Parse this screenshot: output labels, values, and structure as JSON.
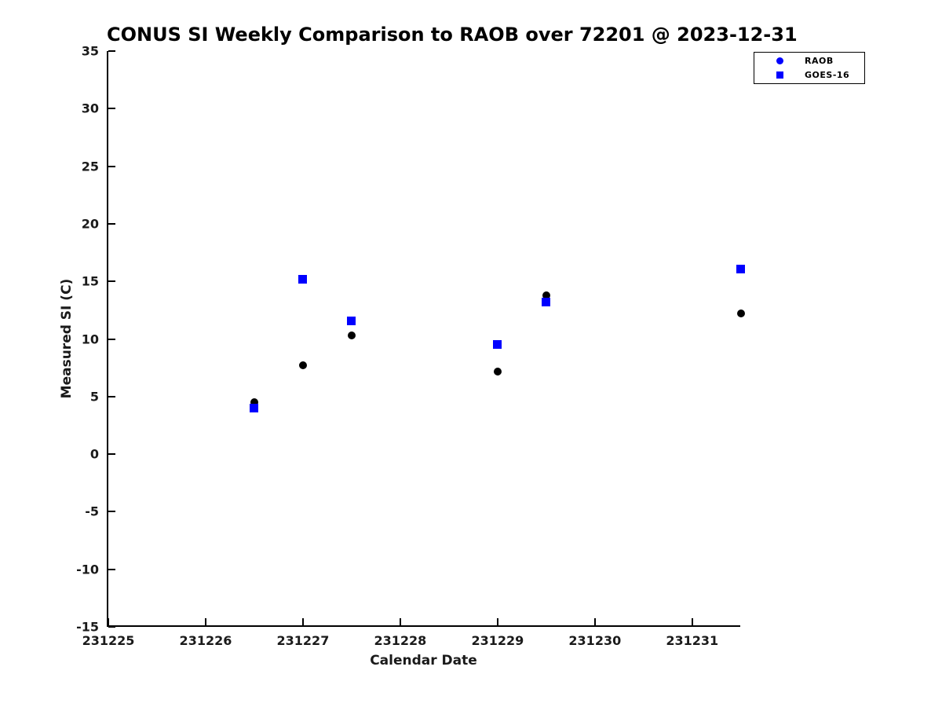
{
  "title": "CONUS SI Weekly Comparison to RAOB over 72201 @ 2023-12-31",
  "axes": {
    "xlabel": "Calendar Date",
    "ylabel": "Measured SI (C)"
  },
  "legend": {
    "position": "top-right",
    "items": [
      {
        "label": "RAOB",
        "marker": "circle",
        "color": "#0000FF"
      },
      {
        "label": "GOES-16",
        "marker": "square",
        "color": "#0000FF"
      }
    ]
  },
  "colors": {
    "raob_marker": "#000000",
    "goes_marker": "#0000FF",
    "axis": "#000000",
    "background": "#ffffff"
  },
  "chart_data": {
    "type": "scatter",
    "title": "CONUS SI Weekly Comparison to RAOB over 72201 @ 2023-12-31",
    "xlabel": "Calendar Date",
    "ylabel": "Measured SI (C)",
    "xlim": [
      231225,
      231231.51
    ],
    "ylim": [
      -15,
      35
    ],
    "x_ticks": [
      231225,
      231226,
      231227,
      231228,
      231229,
      231230,
      231231
    ],
    "y_ticks": [
      35,
      30,
      25,
      20,
      15,
      10,
      5,
      0,
      -5,
      -10,
      -15
    ],
    "grid": false,
    "legend_position": "top-right",
    "series": [
      {
        "name": "RAOB",
        "marker": "circle",
        "marker_color": "#000000",
        "marker_size": 10,
        "points": [
          [
            231226.5,
            4.5
          ],
          [
            231227.0,
            7.7
          ],
          [
            231227.5,
            10.3
          ],
          [
            231229.0,
            7.2
          ],
          [
            231229.5,
            13.8
          ],
          [
            231231.5,
            12.2
          ]
        ]
      },
      {
        "name": "GOES-16",
        "marker": "square",
        "marker_color": "#0000FF",
        "marker_size": 11,
        "points": [
          [
            231226.5,
            4.0
          ],
          [
            231227.0,
            15.2
          ],
          [
            231227.5,
            11.6
          ],
          [
            231229.0,
            9.5
          ],
          [
            231229.5,
            13.2
          ],
          [
            231231.5,
            16.1
          ]
        ]
      }
    ]
  }
}
